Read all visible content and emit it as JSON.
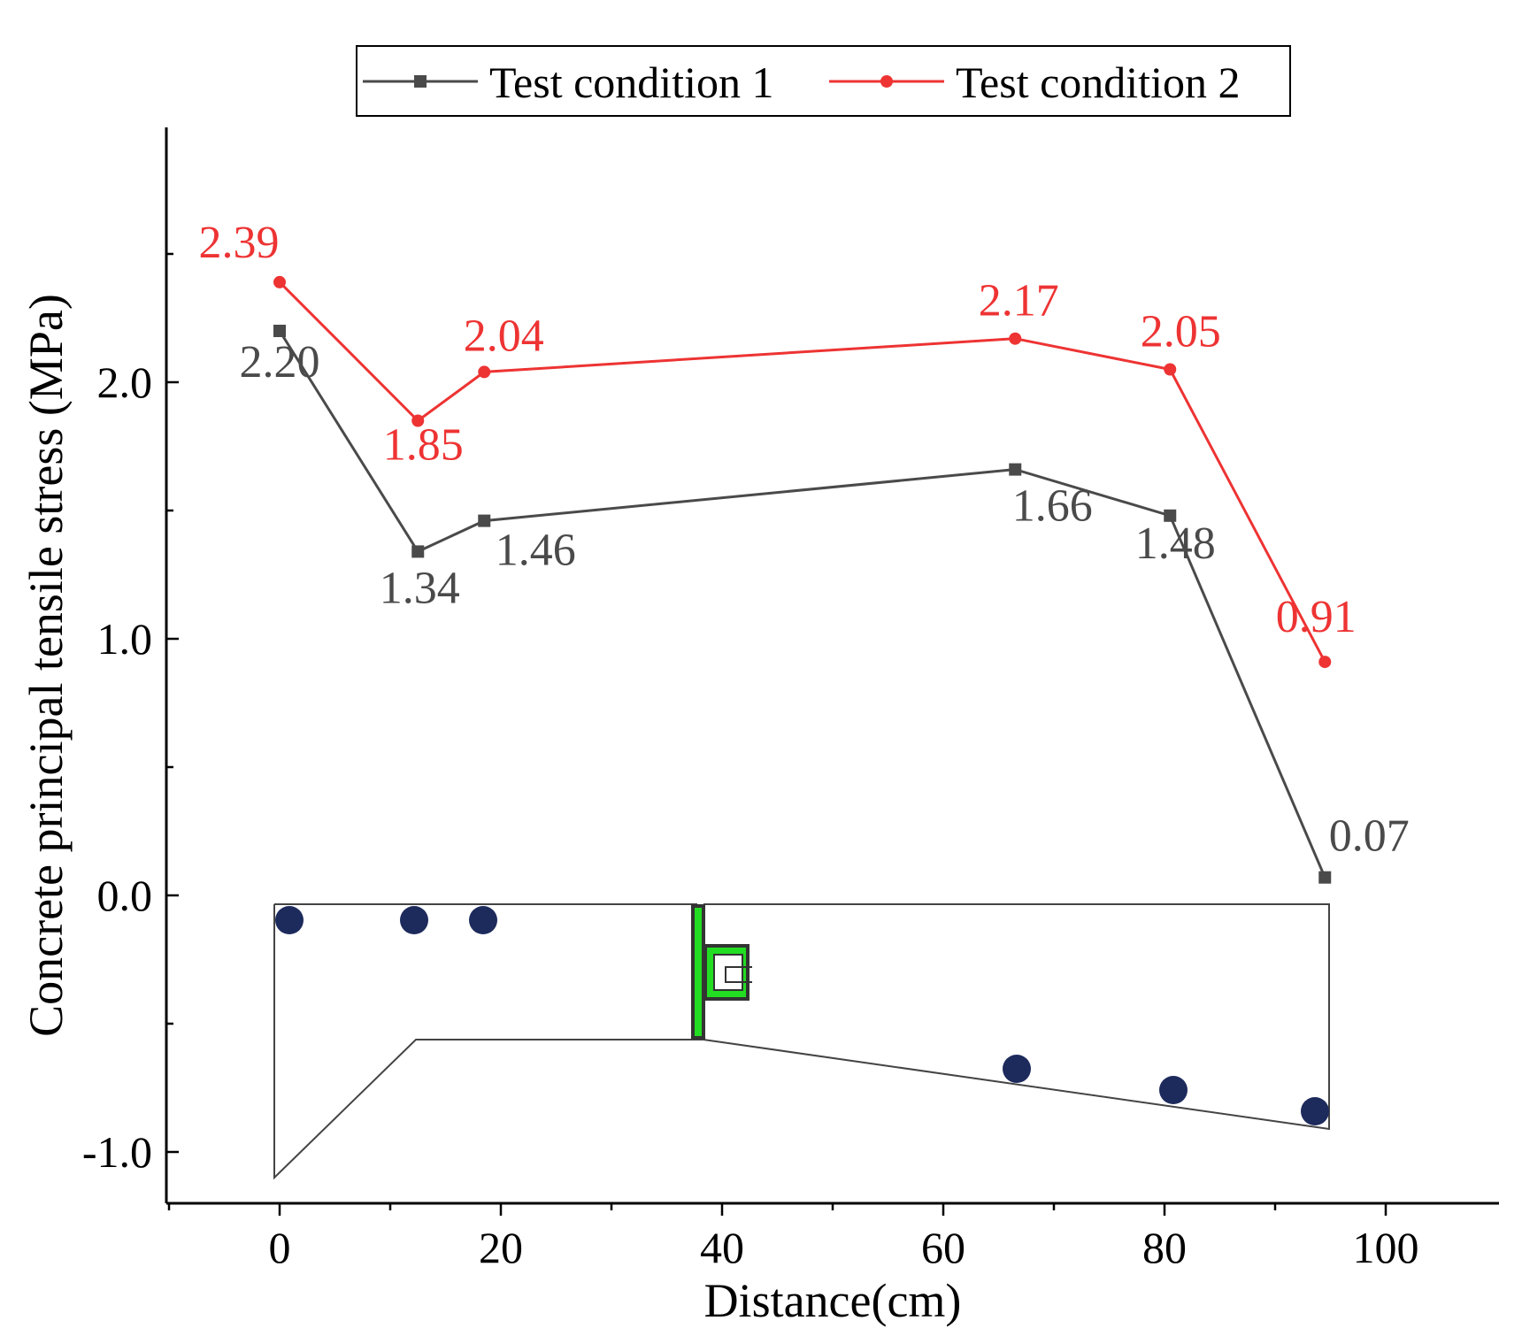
{
  "colors": {
    "series1": "#4a4a4a",
    "series2": "#ee3333",
    "axis": "#000000",
    "dot": "#1d2a5c",
    "inset_green": "#22dd22"
  },
  "chart_data": {
    "type": "line",
    "title": "",
    "xlabel": "Distance(cm)",
    "ylabel": "Concrete principal tensile stress (MPa)",
    "xlim": [
      -10,
      110
    ],
    "ylim": [
      -1.2,
      3.0
    ],
    "xticks": [
      0,
      20,
      40,
      60,
      80,
      100
    ],
    "xtick_labels": [
      "0",
      "20",
      "40",
      "60",
      "80",
      "100"
    ],
    "yticks": [
      -1.0,
      0.0,
      1.0,
      2.0
    ],
    "ytick_labels": [
      "-1.0",
      "0.0",
      "1.0",
      "2.0"
    ],
    "grid": false,
    "legend_position": "top-center",
    "x": [
      0,
      12.5,
      18.5,
      66.5,
      80.5,
      94.5
    ],
    "series": [
      {
        "name": "Test condition 1",
        "marker": "square",
        "values": [
          2.2,
          1.34,
          1.46,
          1.66,
          1.48,
          0.07
        ],
        "labels": [
          "2.20",
          "1.34",
          "1.46",
          "1.66",
          "1.48",
          "0.07"
        ]
      },
      {
        "name": "Test condition 2",
        "marker": "circle",
        "values": [
          2.39,
          1.85,
          2.04,
          2.17,
          2.05,
          0.91
        ],
        "labels": [
          "2.39",
          "1.85",
          "2.04",
          "2.17",
          "2.05",
          "0.91"
        ]
      }
    ]
  }
}
